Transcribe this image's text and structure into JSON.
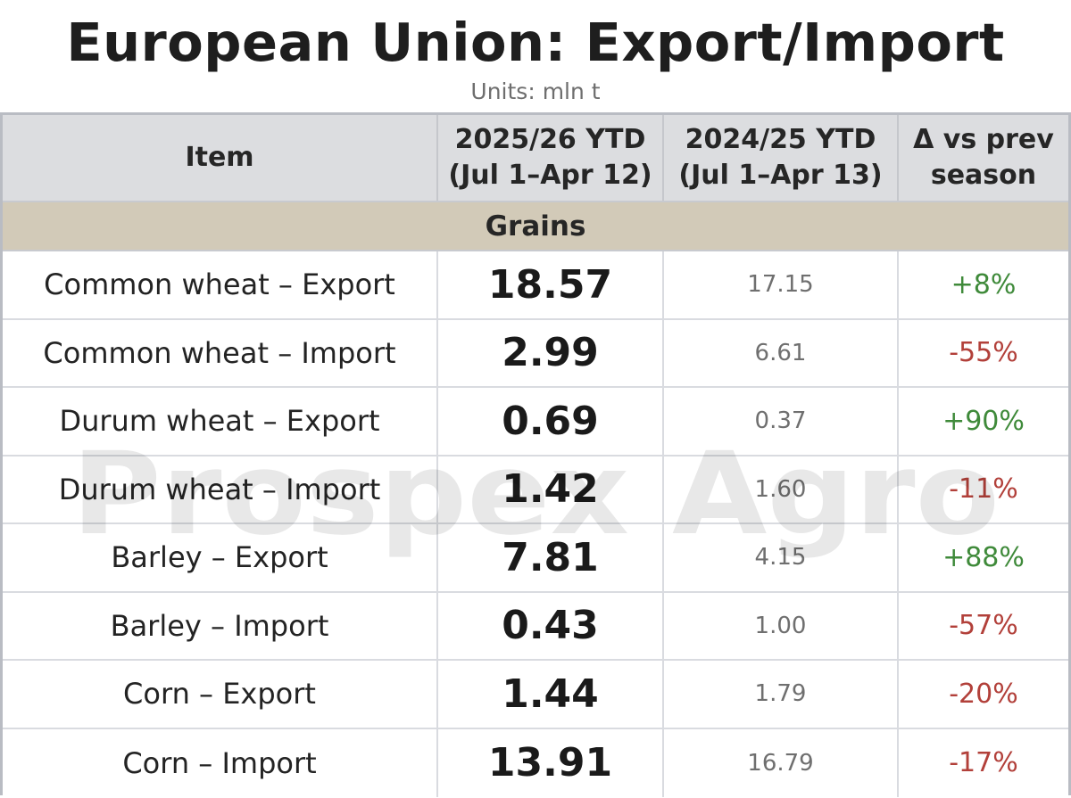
{
  "title": "European Union: Export/Import",
  "subtitle": "Units: mln t",
  "watermark": "Prospex Agro",
  "colors": {
    "positive": "#3f8a3a",
    "negative": "#b2403a",
    "header_bg": "#dcdde0",
    "group_bg": "#d2cab8"
  },
  "chart_data": {
    "type": "table",
    "title": "European Union: Export/Import",
    "units": "Units: mln t",
    "columns": [
      "Item",
      "2025/26 YTD (Jul 1–Apr 12)",
      "2024/25 YTD (Jul 1–Apr 13)",
      "Δ vs prev season"
    ],
    "column_lines": [
      [
        "Item"
      ],
      [
        "2025/26 YTD",
        "(Jul 1–Apr 12)"
      ],
      [
        "2024/25 YTD",
        "(Jul 1–Apr 13)"
      ],
      [
        "Δ vs prev",
        "season"
      ]
    ],
    "group": "Grains",
    "rows": [
      {
        "item": "Common wheat – Export",
        "current": "18.57",
        "previous": "17.15",
        "change": "+8%"
      },
      {
        "item": "Common wheat – Import",
        "current": "2.99",
        "previous": "6.61",
        "change": "-55%"
      },
      {
        "item": "Durum wheat – Export",
        "current": "0.69",
        "previous": "0.37",
        "change": "+90%"
      },
      {
        "item": "Durum wheat – Import",
        "current": "1.42",
        "previous": "1.60",
        "change": "-11%"
      },
      {
        "item": "Barley – Export",
        "current": "7.81",
        "previous": "4.15",
        "change": "+88%"
      },
      {
        "item": "Barley – Import",
        "current": "0.43",
        "previous": "1.00",
        "change": "-57%"
      },
      {
        "item": "Corn – Export",
        "current": "1.44",
        "previous": "1.79",
        "change": "-20%"
      },
      {
        "item": "Corn – Import",
        "current": "13.91",
        "previous": "16.79",
        "change": "-17%"
      }
    ]
  }
}
